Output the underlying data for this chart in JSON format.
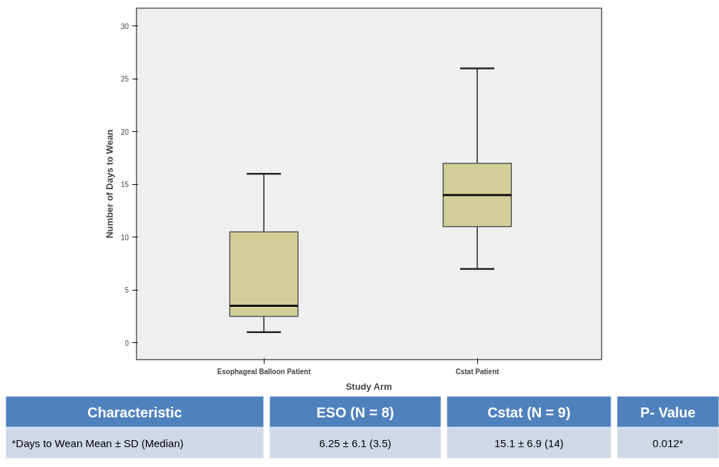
{
  "chart_data": {
    "type": "box",
    "xlabel": "Study Arm",
    "ylabel": "Number of Days to Wean",
    "categories": [
      "Esophageal Balloon Patient",
      "Cstat Patient"
    ],
    "series": [
      {
        "color": "#d3ce98",
        "boxes": [
          {
            "low": 1,
            "q1": 2.5,
            "median": 3.5,
            "q3": 10.5,
            "high": 16
          },
          {
            "low": 7,
            "q1": 11,
            "median": 14,
            "q3": 17,
            "high": 26
          }
        ]
      }
    ],
    "ylim": [
      -1.6,
      31.7
    ],
    "yticks": [
      0,
      5,
      10,
      15,
      20,
      25,
      30
    ],
    "grid": false,
    "annotations": [
      "Characteristic",
      "ESO (N = 8)",
      "Cstat (N = 9)",
      "P- Value",
      "*Days to Wean Mean ± SD (Median)",
      "6.25 ± 6.1 (3.5)",
      "15.1 ± 6.9 (14)",
      "0.012*"
    ]
  }
}
